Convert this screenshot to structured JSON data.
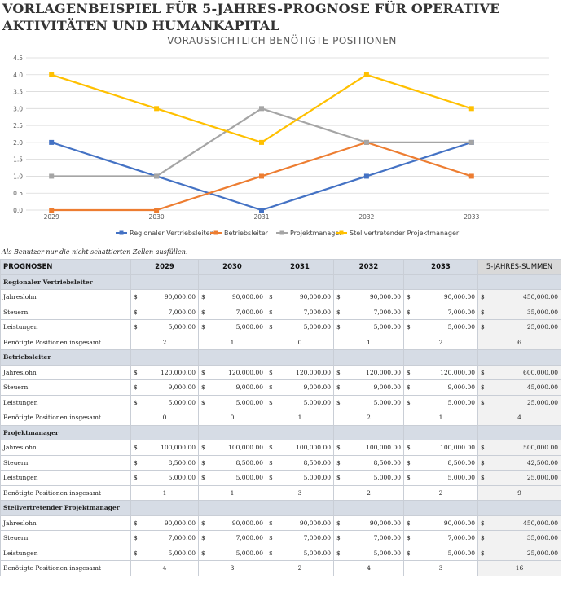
{
  "page_title": "VORLAGENBEISPIEL FÜR 5-JAHRES-PROGNOSE FÜR OPERATIVE AKTIVITÄTEN UND HUMANKAPITAL",
  "note": "Als Benutzer nur die nicht schattierten Zellen ausfüllen.",
  "chart_data": {
    "type": "line",
    "title": "VORAUSSICHTLICH BENÖTIGTE POSITIONEN",
    "categories": [
      "2029",
      "2030",
      "2031",
      "2032",
      "2033"
    ],
    "ylim": [
      0,
      4.5
    ],
    "yticks": [
      "0.0",
      "0.5",
      "1.0",
      "1.5",
      "2.0",
      "2.5",
      "3.0",
      "3.5",
      "4.0",
      "4.5"
    ],
    "grid": true,
    "legend_position": "bottom",
    "series": [
      {
        "name": "Regionaler Vertriebsleiter",
        "color": "#4472c4",
        "values": [
          2,
          1,
          0,
          1,
          2
        ]
      },
      {
        "name": "Betriebsleiter",
        "color": "#ed7d31",
        "values": [
          0,
          0,
          1,
          2,
          1
        ]
      },
      {
        "name": "Projektmanager",
        "color": "#a5a5a5",
        "values": [
          1,
          1,
          3,
          2,
          2
        ]
      },
      {
        "name": "Stellvertretender Projektmanager",
        "color": "#ffc000",
        "values": [
          4,
          3,
          2,
          4,
          3
        ]
      }
    ]
  },
  "table": {
    "headers": [
      "PROGNOSEN",
      "2029",
      "2030",
      "2031",
      "2032",
      "2033",
      "5-JAHRES-SUMMEN"
    ],
    "currency": "$",
    "sections": [
      {
        "title": "Regionaler Vertriebsleiter",
        "rows": [
          {
            "label": "Jahreslohn",
            "money": true,
            "values": [
              "90,000.00",
              "90,000.00",
              "90,000.00",
              "90,000.00",
              "90,000.00"
            ],
            "total": "450,000.00"
          },
          {
            "label": "Steuern",
            "money": true,
            "values": [
              "7,000.00",
              "7,000.00",
              "7,000.00",
              "7,000.00",
              "7,000.00"
            ],
            "total": "35,000.00"
          },
          {
            "label": "Leistungen",
            "money": true,
            "values": [
              "5,000.00",
              "5,000.00",
              "5,000.00",
              "5,000.00",
              "5,000.00"
            ],
            "total": "25,000.00"
          },
          {
            "label": "Benötigte Positionen insgesamt",
            "money": false,
            "values": [
              "2",
              "1",
              "0",
              "1",
              "2"
            ],
            "total": "6"
          }
        ]
      },
      {
        "title": "Betriebsleiter",
        "rows": [
          {
            "label": "Jahreslohn",
            "money": true,
            "values": [
              "120,000.00",
              "120,000.00",
              "120,000.00",
              "120,000.00",
              "120,000.00"
            ],
            "total": "600,000.00"
          },
          {
            "label": "Steuern",
            "money": true,
            "values": [
              "9,000.00",
              "9,000.00",
              "9,000.00",
              "9,000.00",
              "9,000.00"
            ],
            "total": "45,000.00"
          },
          {
            "label": "Leistungen",
            "money": true,
            "values": [
              "5,000.00",
              "5,000.00",
              "5,000.00",
              "5,000.00",
              "5,000.00"
            ],
            "total": "25,000.00"
          },
          {
            "label": "Benötigte Positionen insgesamt",
            "money": false,
            "values": [
              "0",
              "0",
              "1",
              "2",
              "1"
            ],
            "total": "4"
          }
        ]
      },
      {
        "title": "Projektmanager",
        "rows": [
          {
            "label": "Jahreslohn",
            "money": true,
            "values": [
              "100,000.00",
              "100,000.00",
              "100,000.00",
              "100,000.00",
              "100,000.00"
            ],
            "total": "500,000.00"
          },
          {
            "label": "Steuern",
            "money": true,
            "values": [
              "8,500.00",
              "8,500.00",
              "8,500.00",
              "8,500.00",
              "8,500.00"
            ],
            "total": "42,500.00"
          },
          {
            "label": "Leistungen",
            "money": true,
            "values": [
              "5,000.00",
              "5,000.00",
              "5,000.00",
              "5,000.00",
              "5,000.00"
            ],
            "total": "25,000.00"
          },
          {
            "label": "Benötigte Positionen insgesamt",
            "money": false,
            "values": [
              "1",
              "1",
              "3",
              "2",
              "2"
            ],
            "total": "9"
          }
        ]
      },
      {
        "title": "Stellvertretender Projektmanager",
        "rows": [
          {
            "label": "Jahreslohn",
            "money": true,
            "values": [
              "90,000.00",
              "90,000.00",
              "90,000.00",
              "90,000.00",
              "90,000.00"
            ],
            "total": "450,000.00"
          },
          {
            "label": "Steuern",
            "money": true,
            "values": [
              "7,000.00",
              "7,000.00",
              "7,000.00",
              "7,000.00",
              "7,000.00"
            ],
            "total": "35,000.00"
          },
          {
            "label": "Leistungen",
            "money": true,
            "values": [
              "5,000.00",
              "5,000.00",
              "5,000.00",
              "5,000.00",
              "5,000.00"
            ],
            "total": "25,000.00"
          },
          {
            "label": "Benötigte Positionen insgesamt",
            "money": false,
            "values": [
              "4",
              "3",
              "2",
              "4",
              "3"
            ],
            "total": "16"
          }
        ]
      }
    ]
  }
}
